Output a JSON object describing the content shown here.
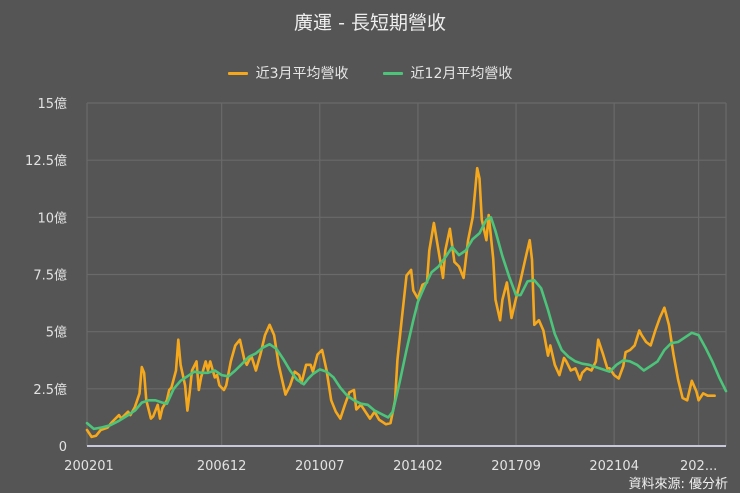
{
  "header": {
    "title": "廣運 - 長短期營收"
  },
  "legend": [
    {
      "label": "近3月平均營收",
      "color": "#f5a81c"
    },
    {
      "label": "近12月平均營收",
      "color": "#4cc47a"
    }
  ],
  "footer": {
    "source": "資料來源: 優分析"
  },
  "chart_data": {
    "type": "line",
    "title": "廣運 - 長短期營收",
    "xlabel": "",
    "ylabel": "",
    "ylim": [
      0,
      15
    ],
    "y_ticks": [
      {
        "value": 0,
        "label": "0"
      },
      {
        "value": 2.5,
        "label": "2.5億"
      },
      {
        "value": 5,
        "label": "5億"
      },
      {
        "value": 7.5,
        "label": "7.5億"
      },
      {
        "value": 10,
        "label": "10億"
      },
      {
        "value": 12.5,
        "label": "12.5億"
      },
      {
        "value": 15,
        "label": "15億"
      }
    ],
    "x_ticks": [
      {
        "month_index": 0,
        "label": "200201"
      },
      {
        "month_index": 59,
        "label": "200612"
      },
      {
        "month_index": 102,
        "label": "201007"
      },
      {
        "month_index": 145,
        "label": "201402"
      },
      {
        "month_index": 188,
        "label": "201709"
      },
      {
        "month_index": 231,
        "label": "202104"
      },
      {
        "month_index": 268,
        "label": "202..."
      }
    ],
    "x_range_months": [
      0,
      280
    ],
    "grid": true,
    "legend_position": "top",
    "unit": "億",
    "series": [
      {
        "name": "近3月平均營收",
        "color": "#f5a81c",
        "points": [
          [
            0,
            0.7
          ],
          [
            2,
            0.4
          ],
          [
            4,
            0.45
          ],
          [
            6,
            0.7
          ],
          [
            9,
            0.8
          ],
          [
            11,
            1.05
          ],
          [
            14,
            1.35
          ],
          [
            15,
            1.2
          ],
          [
            18,
            1.5
          ],
          [
            19,
            1.35
          ],
          [
            21,
            1.7
          ],
          [
            23,
            2.3
          ],
          [
            24,
            3.45
          ],
          [
            25,
            3.2
          ],
          [
            26,
            2.0
          ],
          [
            28,
            1.2
          ],
          [
            29,
            1.3
          ],
          [
            31,
            1.8
          ],
          [
            32,
            1.2
          ],
          [
            33,
            1.65
          ],
          [
            35,
            2.0
          ],
          [
            36,
            2.45
          ],
          [
            37,
            2.55
          ],
          [
            39,
            3.3
          ],
          [
            40,
            4.65
          ],
          [
            41,
            3.55
          ],
          [
            43,
            2.65
          ],
          [
            44,
            1.55
          ],
          [
            45,
            2.35
          ],
          [
            46,
            3.3
          ],
          [
            48,
            3.7
          ],
          [
            49,
            2.45
          ],
          [
            50,
            3.0
          ],
          [
            52,
            3.7
          ],
          [
            53,
            3.3
          ],
          [
            54,
            3.7
          ],
          [
            56,
            3.0
          ],
          [
            57,
            3.1
          ],
          [
            58,
            2.65
          ],
          [
            60,
            2.45
          ],
          [
            61,
            2.65
          ],
          [
            63,
            3.7
          ],
          [
            65,
            4.4
          ],
          [
            67,
            4.65
          ],
          [
            69,
            3.75
          ],
          [
            70,
            3.55
          ],
          [
            72,
            3.95
          ],
          [
            74,
            3.3
          ],
          [
            76,
            4.0
          ],
          [
            78,
            4.85
          ],
          [
            80,
            5.3
          ],
          [
            82,
            4.85
          ],
          [
            84,
            3.55
          ],
          [
            87,
            2.25
          ],
          [
            89,
            2.65
          ],
          [
            91,
            3.25
          ],
          [
            93,
            3.1
          ],
          [
            94,
            2.75
          ],
          [
            96,
            3.55
          ],
          [
            98,
            3.55
          ],
          [
            99,
            3.25
          ],
          [
            101,
            4.0
          ],
          [
            103,
            4.2
          ],
          [
            105,
            3.3
          ],
          [
            107,
            2.0
          ],
          [
            109,
            1.5
          ],
          [
            111,
            1.2
          ],
          [
            113,
            1.8
          ],
          [
            115,
            2.35
          ],
          [
            117,
            2.45
          ],
          [
            118,
            1.6
          ],
          [
            120,
            1.8
          ],
          [
            122,
            1.5
          ],
          [
            124,
            1.2
          ],
          [
            126,
            1.5
          ],
          [
            128,
            1.15
          ],
          [
            131,
            0.95
          ],
          [
            133,
            1.0
          ],
          [
            135,
            2.0
          ],
          [
            136,
            3.75
          ],
          [
            138,
            5.6
          ],
          [
            140,
            7.45
          ],
          [
            142,
            7.7
          ],
          [
            143,
            6.8
          ],
          [
            145,
            6.45
          ],
          [
            147,
            7.05
          ],
          [
            149,
            7.15
          ],
          [
            150,
            8.55
          ],
          [
            152,
            9.75
          ],
          [
            154,
            8.55
          ],
          [
            156,
            7.35
          ],
          [
            157,
            8.55
          ],
          [
            159,
            9.5
          ],
          [
            161,
            8.05
          ],
          [
            163,
            7.85
          ],
          [
            165,
            7.35
          ],
          [
            167,
            9.0
          ],
          [
            169,
            10.0
          ],
          [
            171,
            12.15
          ],
          [
            172,
            11.7
          ],
          [
            173,
            9.9
          ],
          [
            175,
            9.0
          ],
          [
            176,
            10.1
          ],
          [
            178,
            8.2
          ],
          [
            179,
            6.4
          ],
          [
            181,
            5.5
          ],
          [
            182,
            6.4
          ],
          [
            184,
            7.15
          ],
          [
            185,
            6.4
          ],
          [
            186,
            5.6
          ],
          [
            188,
            6.45
          ],
          [
            190,
            7.25
          ],
          [
            192,
            8.15
          ],
          [
            194,
            9.0
          ],
          [
            195,
            8.15
          ],
          [
            196,
            5.3
          ],
          [
            198,
            5.5
          ],
          [
            200,
            5.05
          ],
          [
            202,
            3.95
          ],
          [
            203,
            4.4
          ],
          [
            205,
            3.55
          ],
          [
            207,
            3.1
          ],
          [
            209,
            3.85
          ],
          [
            210,
            3.7
          ],
          [
            212,
            3.3
          ],
          [
            214,
            3.4
          ],
          [
            216,
            2.9
          ],
          [
            217,
            3.2
          ],
          [
            219,
            3.4
          ],
          [
            221,
            3.3
          ],
          [
            223,
            3.7
          ],
          [
            224,
            4.65
          ],
          [
            226,
            4.05
          ],
          [
            228,
            3.4
          ],
          [
            229,
            3.4
          ],
          [
            231,
            3.1
          ],
          [
            233,
            2.95
          ],
          [
            235,
            3.5
          ],
          [
            236,
            4.1
          ],
          [
            238,
            4.2
          ],
          [
            240,
            4.4
          ],
          [
            242,
            5.05
          ],
          [
            243,
            4.85
          ],
          [
            245,
            4.55
          ],
          [
            247,
            4.4
          ],
          [
            249,
            5.05
          ],
          [
            251,
            5.6
          ],
          [
            253,
            6.05
          ],
          [
            255,
            5.3
          ],
          [
            257,
            4.0
          ],
          [
            259,
            2.9
          ],
          [
            261,
            2.1
          ],
          [
            263,
            2.0
          ],
          [
            265,
            2.85
          ],
          [
            267,
            2.4
          ],
          [
            268,
            2.0
          ],
          [
            270,
            2.3
          ],
          [
            272,
            2.2
          ],
          [
            275,
            2.2
          ]
        ]
      },
      {
        "name": "近12月平均營收",
        "color": "#4cc47a",
        "points": [
          [
            0,
            1.0
          ],
          [
            3,
            0.75
          ],
          [
            6,
            0.8
          ],
          [
            10,
            0.9
          ],
          [
            14,
            1.1
          ],
          [
            18,
            1.35
          ],
          [
            21,
            1.55
          ],
          [
            24,
            1.9
          ],
          [
            27,
            2.0
          ],
          [
            30,
            2.0
          ],
          [
            33,
            1.9
          ],
          [
            35,
            1.85
          ],
          [
            38,
            2.5
          ],
          [
            41,
            2.85
          ],
          [
            44,
            3.05
          ],
          [
            47,
            3.25
          ],
          [
            50,
            3.2
          ],
          [
            53,
            3.2
          ],
          [
            56,
            3.3
          ],
          [
            59,
            3.1
          ],
          [
            62,
            3.05
          ],
          [
            65,
            3.3
          ],
          [
            68,
            3.6
          ],
          [
            71,
            3.9
          ],
          [
            74,
            4.05
          ],
          [
            77,
            4.3
          ],
          [
            80,
            4.45
          ],
          [
            83,
            4.25
          ],
          [
            86,
            3.8
          ],
          [
            89,
            3.3
          ],
          [
            92,
            2.9
          ],
          [
            95,
            2.7
          ],
          [
            97,
            2.95
          ],
          [
            99,
            3.15
          ],
          [
            102,
            3.35
          ],
          [
            105,
            3.25
          ],
          [
            108,
            3.0
          ],
          [
            111,
            2.55
          ],
          [
            114,
            2.2
          ],
          [
            117,
            2.0
          ],
          [
            120,
            1.85
          ],
          [
            123,
            1.8
          ],
          [
            126,
            1.55
          ],
          [
            129,
            1.4
          ],
          [
            132,
            1.25
          ],
          [
            134,
            1.5
          ],
          [
            137,
            2.8
          ],
          [
            140,
            4.2
          ],
          [
            143,
            5.5
          ],
          [
            145,
            6.3
          ],
          [
            148,
            7.0
          ],
          [
            151,
            7.6
          ],
          [
            154,
            7.85
          ],
          [
            157,
            8.25
          ],
          [
            160,
            8.7
          ],
          [
            163,
            8.35
          ],
          [
            166,
            8.55
          ],
          [
            169,
            9.05
          ],
          [
            172,
            9.3
          ],
          [
            175,
            9.9
          ],
          [
            177,
            10.0
          ],
          [
            179,
            9.4
          ],
          [
            182,
            8.3
          ],
          [
            185,
            7.4
          ],
          [
            188,
            6.6
          ],
          [
            190,
            6.6
          ],
          [
            193,
            7.2
          ],
          [
            196,
            7.25
          ],
          [
            199,
            6.9
          ],
          [
            202,
            5.95
          ],
          [
            205,
            4.9
          ],
          [
            208,
            4.2
          ],
          [
            211,
            3.9
          ],
          [
            214,
            3.7
          ],
          [
            217,
            3.6
          ],
          [
            220,
            3.55
          ],
          [
            223,
            3.45
          ],
          [
            226,
            3.35
          ],
          [
            229,
            3.25
          ],
          [
            232,
            3.55
          ],
          [
            235,
            3.75
          ],
          [
            238,
            3.7
          ],
          [
            241,
            3.55
          ],
          [
            244,
            3.3
          ],
          [
            247,
            3.5
          ],
          [
            250,
            3.7
          ],
          [
            253,
            4.2
          ],
          [
            256,
            4.5
          ],
          [
            259,
            4.55
          ],
          [
            262,
            4.75
          ],
          [
            265,
            4.95
          ],
          [
            268,
            4.85
          ],
          [
            271,
            4.3
          ],
          [
            274,
            3.7
          ],
          [
            277,
            3.0
          ],
          [
            280,
            2.4
          ]
        ]
      }
    ]
  }
}
